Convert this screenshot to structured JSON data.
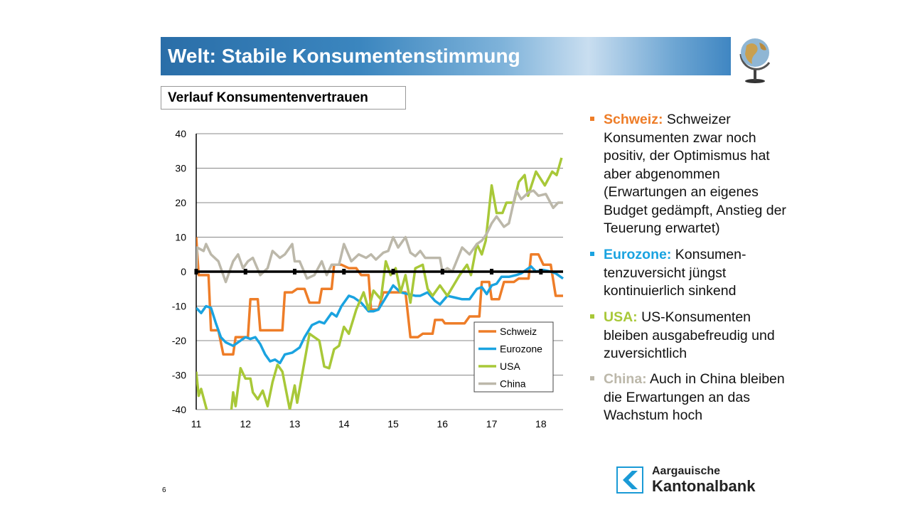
{
  "header": {
    "title": "Welt: Stabile Konsumentenstimmung"
  },
  "subtitle": "Verlauf Konsumentenvertrauen",
  "bullets": [
    {
      "label": "Schweiz:",
      "text": " Schweizer Konsumenten zwar noch positiv, der Optimismus hat aber abgenommen (Erwartungen an eigenes Budget gedämpft, Anstieg der Teuerung erwartet)",
      "color": "#ee7d28"
    },
    {
      "label": "Eurozone:",
      "text": " Konsumen-tenzuversicht jüngst kontinuierlich sinkend",
      "color": "#1aa3e0"
    },
    {
      "label": "USA:",
      "text": " US-Konsumenten bleiben ausgabefreudig und zuversichtlich",
      "color": "#a8c838"
    },
    {
      "label": "China:",
      "text": " Auch in China bleiben die Erwartungen an das Wachstum hoch",
      "color": "#bcb8aa"
    }
  ],
  "page_number": "6",
  "logo": {
    "line1": "Aargauische",
    "line2": "Kantonalbank",
    "color": "#1a9ad6"
  },
  "chart_data": {
    "type": "line",
    "xlim": [
      2011,
      2018.45
    ],
    "ylim": [
      -40,
      40
    ],
    "yticks": [
      40,
      30,
      20,
      10,
      0,
      -10,
      -20,
      -30,
      -40
    ],
    "xticks": [
      {
        "value": 2011,
        "label": "11"
      },
      {
        "value": 2012,
        "label": "12"
      },
      {
        "value": 2013,
        "label": "13"
      },
      {
        "value": 2014,
        "label": "14"
      },
      {
        "value": 2015,
        "label": "15"
      },
      {
        "value": 2016,
        "label": "16"
      },
      {
        "value": 2017,
        "label": "17"
      },
      {
        "value": 2018,
        "label": "18"
      }
    ],
    "grid": true,
    "legend_position": "bottom-right",
    "series": [
      {
        "name": "Schweiz",
        "color": "#ee7d28",
        "points": [
          [
            2011,
            10
          ],
          [
            2011.05,
            -1
          ],
          [
            2011.25,
            -1
          ],
          [
            2011.3,
            -17
          ],
          [
            2011.45,
            -17
          ],
          [
            2011.55,
            -24
          ],
          [
            2011.75,
            -24
          ],
          [
            2011.8,
            -19
          ],
          [
            2012.05,
            -19
          ],
          [
            2012.1,
            -8
          ],
          [
            2012.25,
            -8
          ],
          [
            2012.3,
            -17
          ],
          [
            2012.75,
            -17
          ],
          [
            2012.8,
            -6
          ],
          [
            2012.95,
            -6
          ],
          [
            2013.05,
            -5
          ],
          [
            2013.2,
            -5
          ],
          [
            2013.3,
            -9
          ],
          [
            2013.5,
            -9
          ],
          [
            2013.55,
            -5
          ],
          [
            2013.75,
            -5
          ],
          [
            2013.8,
            2
          ],
          [
            2013.95,
            2
          ],
          [
            2014.1,
            1
          ],
          [
            2014.25,
            1
          ],
          [
            2014.35,
            -1
          ],
          [
            2014.5,
            -1
          ],
          [
            2014.55,
            -11
          ],
          [
            2014.7,
            -11
          ],
          [
            2014.8,
            -6
          ],
          [
            2015.25,
            -6
          ],
          [
            2015.35,
            -19
          ],
          [
            2015.5,
            -19
          ],
          [
            2015.6,
            -18
          ],
          [
            2015.8,
            -18
          ],
          [
            2015.85,
            -14
          ],
          [
            2016,
            -14
          ],
          [
            2016.05,
            -15
          ],
          [
            2016.45,
            -15
          ],
          [
            2016.55,
            -13
          ],
          [
            2016.75,
            -13
          ],
          [
            2016.8,
            -3
          ],
          [
            2016.95,
            -3
          ],
          [
            2017,
            -8
          ],
          [
            2017.15,
            -8
          ],
          [
            2017.25,
            -3
          ],
          [
            2017.45,
            -3
          ],
          [
            2017.55,
            -2
          ],
          [
            2017.75,
            -2
          ],
          [
            2017.8,
            5
          ],
          [
            2017.95,
            5
          ],
          [
            2018.05,
            2
          ],
          [
            2018.2,
            2
          ],
          [
            2018.3,
            -7
          ],
          [
            2018.45,
            -7
          ]
        ]
      },
      {
        "name": "Eurozone",
        "color": "#1aa3e0",
        "points": [
          [
            2011,
            -10.5
          ],
          [
            2011.1,
            -12
          ],
          [
            2011.2,
            -10
          ],
          [
            2011.3,
            -10.5
          ],
          [
            2011.4,
            -15
          ],
          [
            2011.5,
            -19
          ],
          [
            2011.6,
            -20.5
          ],
          [
            2011.75,
            -21.5
          ],
          [
            2011.9,
            -20
          ],
          [
            2012,
            -19
          ],
          [
            2012.1,
            -19.5
          ],
          [
            2012.2,
            -19
          ],
          [
            2012.3,
            -21
          ],
          [
            2012.4,
            -24
          ],
          [
            2012.5,
            -26
          ],
          [
            2012.6,
            -25.5
          ],
          [
            2012.7,
            -26.5
          ],
          [
            2012.8,
            -24
          ],
          [
            2012.95,
            -23.5
          ],
          [
            2013.1,
            -22
          ],
          [
            2013.2,
            -19
          ],
          [
            2013.35,
            -15.5
          ],
          [
            2013.5,
            -14.5
          ],
          [
            2013.6,
            -15
          ],
          [
            2013.75,
            -12
          ],
          [
            2013.85,
            -13
          ],
          [
            2013.95,
            -10
          ],
          [
            2014.1,
            -7
          ],
          [
            2014.2,
            -7.5
          ],
          [
            2014.35,
            -9
          ],
          [
            2014.5,
            -11.5
          ],
          [
            2014.6,
            -11.5
          ],
          [
            2014.7,
            -11
          ],
          [
            2014.85,
            -7.5
          ],
          [
            2015,
            -4
          ],
          [
            2015.15,
            -6
          ],
          [
            2015.3,
            -6.5
          ],
          [
            2015.45,
            -7
          ],
          [
            2015.55,
            -7
          ],
          [
            2015.7,
            -6
          ],
          [
            2015.85,
            -8.5
          ],
          [
            2015.95,
            -9.5
          ],
          [
            2016.1,
            -7
          ],
          [
            2016.25,
            -7.5
          ],
          [
            2016.4,
            -8
          ],
          [
            2016.55,
            -8
          ],
          [
            2016.7,
            -5
          ],
          [
            2016.8,
            -4.5
          ],
          [
            2016.9,
            -6.5
          ],
          [
            2017,
            -4
          ],
          [
            2017.1,
            -3.5
          ],
          [
            2017.2,
            -1.5
          ],
          [
            2017.35,
            -1.5
          ],
          [
            2017.5,
            -1
          ],
          [
            2017.6,
            -0.5
          ],
          [
            2017.8,
            1.5
          ],
          [
            2017.9,
            0
          ],
          [
            2018.05,
            0.5
          ],
          [
            2018.2,
            0
          ],
          [
            2018.3,
            -0.5
          ],
          [
            2018.45,
            -2
          ]
        ]
      },
      {
        "name": "USA",
        "color": "#a8c838",
        "points": [
          [
            2011,
            -29
          ],
          [
            2011.05,
            -36
          ],
          [
            2011.1,
            -34
          ],
          [
            2011.25,
            -42
          ],
          [
            2011.5,
            -45
          ],
          [
            2011.7,
            -42
          ],
          [
            2011.75,
            -35
          ],
          [
            2011.8,
            -39
          ],
          [
            2011.9,
            -28
          ],
          [
            2012,
            -31
          ],
          [
            2012.1,
            -31
          ],
          [
            2012.15,
            -35
          ],
          [
            2012.25,
            -37
          ],
          [
            2012.35,
            -34.5
          ],
          [
            2012.45,
            -39
          ],
          [
            2012.55,
            -32
          ],
          [
            2012.65,
            -27
          ],
          [
            2012.75,
            -29
          ],
          [
            2012.9,
            -40
          ],
          [
            2013,
            -33
          ],
          [
            2013.05,
            -38
          ],
          [
            2013.15,
            -30
          ],
          [
            2013.3,
            -18
          ],
          [
            2013.4,
            -19
          ],
          [
            2013.5,
            -20
          ],
          [
            2013.6,
            -27.5
          ],
          [
            2013.7,
            -28
          ],
          [
            2013.8,
            -22.5
          ],
          [
            2013.9,
            -21.5
          ],
          [
            2014,
            -16
          ],
          [
            2014.1,
            -18
          ],
          [
            2014.25,
            -11
          ],
          [
            2014.4,
            -6
          ],
          [
            2014.5,
            -11
          ],
          [
            2014.6,
            -5.5
          ],
          [
            2014.75,
            -8
          ],
          [
            2014.85,
            3
          ],
          [
            2014.95,
            -1
          ],
          [
            2015.05,
            1
          ],
          [
            2015.15,
            -6
          ],
          [
            2015.25,
            -1
          ],
          [
            2015.35,
            -9
          ],
          [
            2015.45,
            1
          ],
          [
            2015.6,
            2
          ],
          [
            2015.7,
            -5
          ],
          [
            2015.8,
            -7
          ],
          [
            2015.95,
            -4
          ],
          [
            2016.1,
            -7
          ],
          [
            2016.35,
            -1
          ],
          [
            2016.5,
            2
          ],
          [
            2016.58,
            -1
          ],
          [
            2016.7,
            8
          ],
          [
            2016.8,
            5
          ],
          [
            2016.88,
            9
          ],
          [
            2017,
            25
          ],
          [
            2017.1,
            17
          ],
          [
            2017.22,
            17
          ],
          [
            2017.3,
            20
          ],
          [
            2017.45,
            20
          ],
          [
            2017.55,
            26
          ],
          [
            2017.67,
            28
          ],
          [
            2017.74,
            22
          ],
          [
            2017.9,
            29
          ],
          [
            2018.08,
            25
          ],
          [
            2018.23,
            29
          ],
          [
            2018.32,
            28
          ],
          [
            2018.42,
            33
          ]
        ]
      },
      {
        "name": "China",
        "color": "#bcb8aa",
        "points": [
          [
            2011,
            0
          ],
          [
            2011.02,
            7
          ],
          [
            2011.15,
            6
          ],
          [
            2011.2,
            8
          ],
          [
            2011.3,
            5
          ],
          [
            2011.45,
            3
          ],
          [
            2011.6,
            -3
          ],
          [
            2011.75,
            3
          ],
          [
            2011.85,
            5
          ],
          [
            2011.95,
            1
          ],
          [
            2012.05,
            3
          ],
          [
            2012.15,
            4
          ],
          [
            2012.3,
            -1
          ],
          [
            2012.45,
            1
          ],
          [
            2012.55,
            6
          ],
          [
            2012.7,
            4
          ],
          [
            2012.8,
            5
          ],
          [
            2012.95,
            8
          ],
          [
            2013,
            3
          ],
          [
            2013.1,
            3
          ],
          [
            2013.25,
            -2
          ],
          [
            2013.4,
            -1
          ],
          [
            2013.55,
            3
          ],
          [
            2013.65,
            -1
          ],
          [
            2013.75,
            2
          ],
          [
            2013.9,
            2
          ],
          [
            2014,
            8
          ],
          [
            2014.15,
            3
          ],
          [
            2014.3,
            5
          ],
          [
            2014.45,
            4
          ],
          [
            2014.55,
            5
          ],
          [
            2014.65,
            3.5
          ],
          [
            2014.8,
            5.5
          ],
          [
            2014.9,
            6
          ],
          [
            2015,
            10
          ],
          [
            2015.1,
            7
          ],
          [
            2015.25,
            10
          ],
          [
            2015.35,
            5.5
          ],
          [
            2015.45,
            4.5
          ],
          [
            2015.55,
            6
          ],
          [
            2015.65,
            4
          ],
          [
            2015.95,
            4
          ],
          [
            2016,
            0
          ],
          [
            2016.1,
            1
          ],
          [
            2016.2,
            0
          ],
          [
            2016.4,
            7
          ],
          [
            2016.55,
            5
          ],
          [
            2016.7,
            8
          ],
          [
            2016.8,
            9
          ],
          [
            2016.9,
            11
          ],
          [
            2017,
            14
          ],
          [
            2017.1,
            16
          ],
          [
            2017.25,
            13
          ],
          [
            2017.35,
            14
          ],
          [
            2017.5,
            23.5
          ],
          [
            2017.6,
            21
          ],
          [
            2017.75,
            23
          ],
          [
            2017.85,
            23.5
          ],
          [
            2017.95,
            22
          ],
          [
            2018.1,
            22.5
          ],
          [
            2018.25,
            18.5
          ],
          [
            2018.35,
            20
          ],
          [
            2018.45,
            20
          ]
        ]
      }
    ]
  }
}
